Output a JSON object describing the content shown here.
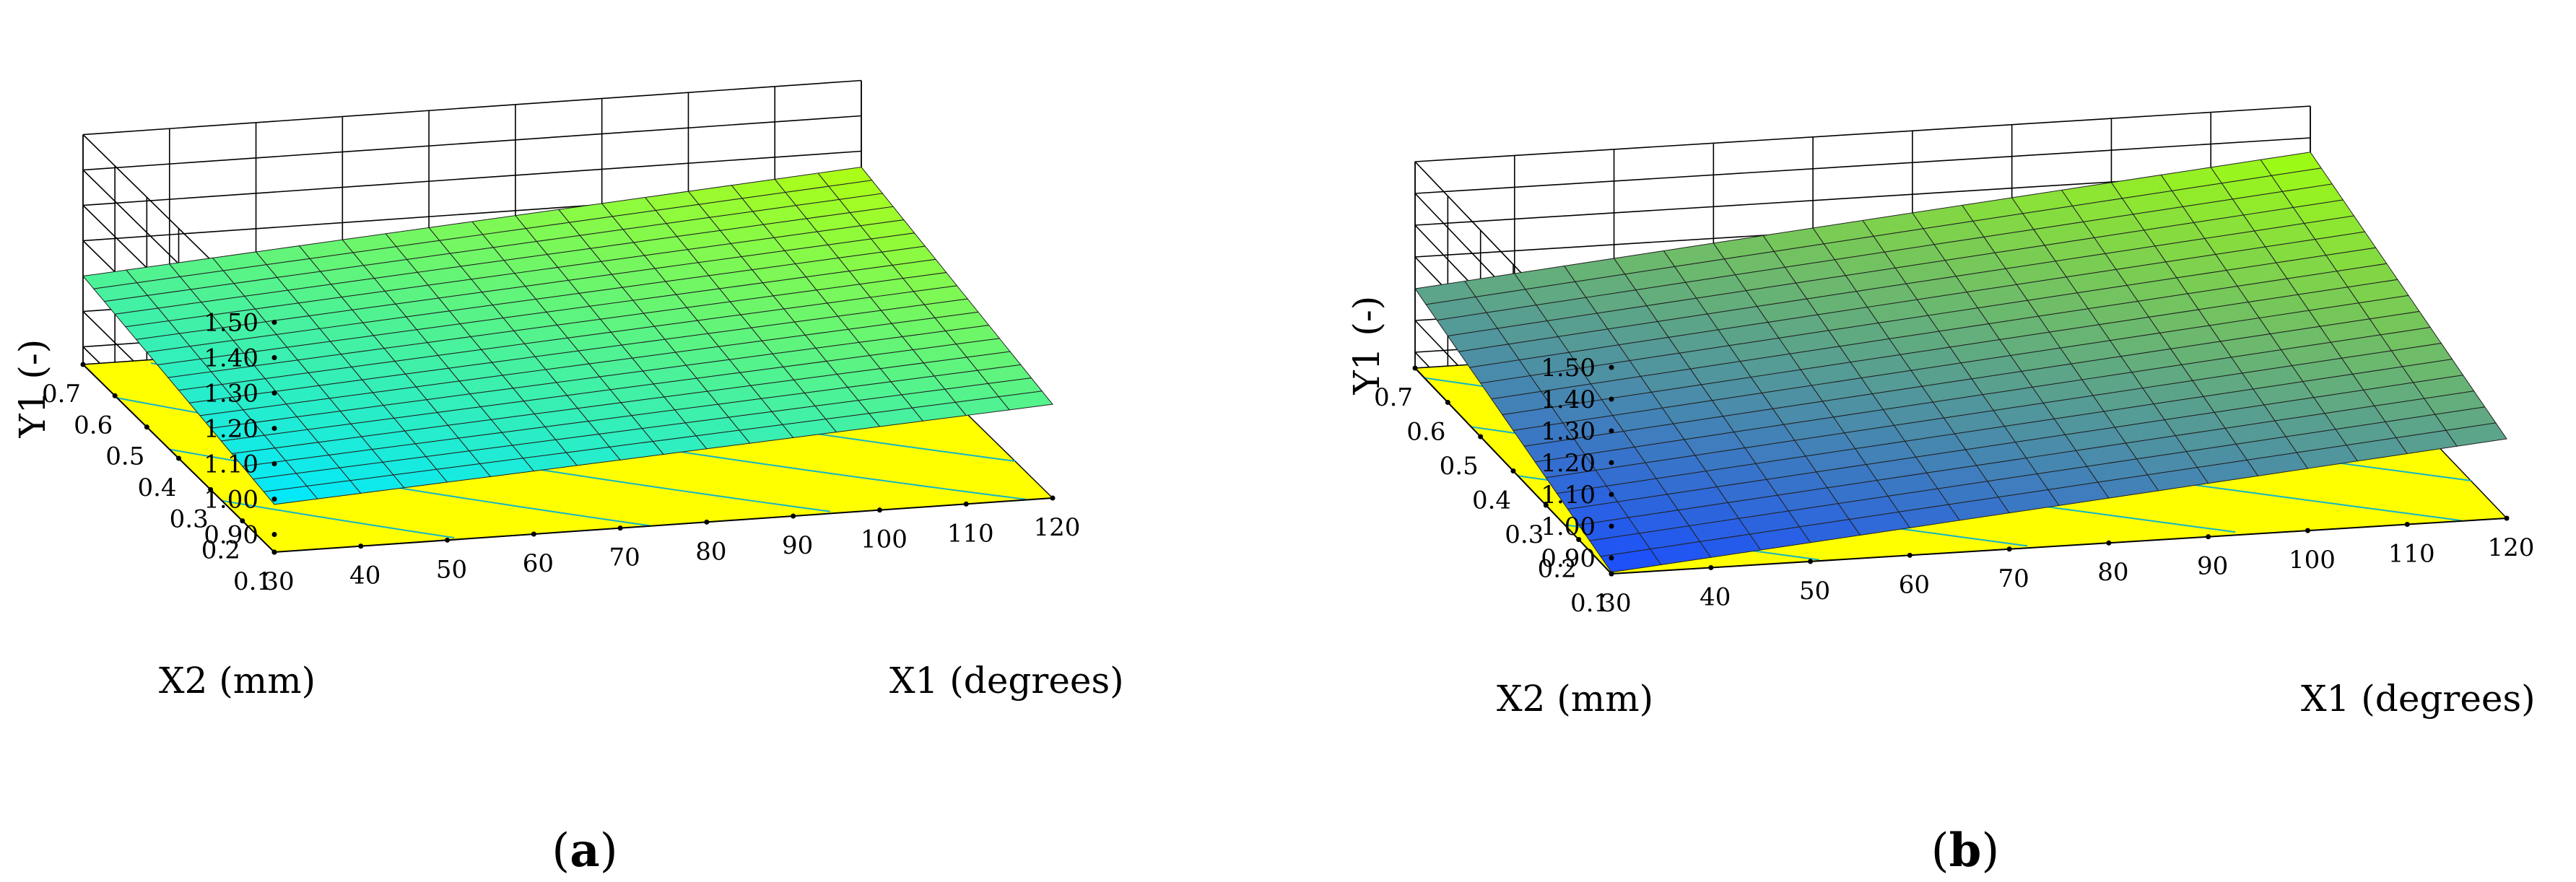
{
  "chart_data": [
    {
      "type": "surface",
      "panel_label": "a",
      "xlabel": "X1 (degrees)",
      "ylabel": "X2 (mm)",
      "zlabel": "Y1 (-)",
      "x_ticks": [
        "30",
        "40",
        "50",
        "60",
        "70",
        "80",
        "90",
        "100",
        "110",
        "120"
      ],
      "y_ticks": [
        "0.1",
        "0.2",
        "0.3",
        "0.4",
        "0.5",
        "0.6",
        "0.7"
      ],
      "z_ticks": [
        "0.90",
        "1.00",
        "1.10",
        "1.20",
        "1.30",
        "1.40",
        "1.50"
      ],
      "xlim": [
        30,
        120
      ],
      "ylim": [
        0.1,
        0.7
      ],
      "zlim": [
        0.85,
        1.5
      ],
      "corners": [
        {
          "x": 30,
          "y": 0.1,
          "z": 0.985
        },
        {
          "x": 120,
          "y": 0.1,
          "z": 1.115
        },
        {
          "x": 120,
          "y": 0.7,
          "z": 1.255
        },
        {
          "x": 30,
          "y": 0.7,
          "z": 1.1
        }
      ],
      "colors": {
        "low": "#00e8ff",
        "high": "#b0ff10",
        "floor": "#ffff00"
      }
    },
    {
      "type": "surface",
      "panel_label": "b",
      "xlabel": "X1 (degrees)",
      "ylabel": "X2 (mm)",
      "zlabel": "Y1 (-)",
      "x_ticks": [
        "30",
        "40",
        "50",
        "60",
        "70",
        "80",
        "90",
        "100",
        "110",
        "120"
      ],
      "y_ticks": [
        "0.1",
        "0.2",
        "0.3",
        "0.4",
        "0.5",
        "0.6",
        "0.7"
      ],
      "z_ticks": [
        "0.90",
        "1.00",
        "1.10",
        "1.20",
        "1.30",
        "1.40",
        "1.50"
      ],
      "xlim": [
        30,
        120
      ],
      "ylim": [
        0.1,
        0.7
      ],
      "zlim": [
        0.85,
        1.5
      ],
      "corners": [
        {
          "x": 30,
          "y": 0.1,
          "z": 0.855
        },
        {
          "x": 120,
          "y": 0.1,
          "z": 1.1
        },
        {
          "x": 120,
          "y": 0.7,
          "z": 1.355
        },
        {
          "x": 30,
          "y": 0.7,
          "z": 1.1
        }
      ],
      "colors": {
        "low": "#1a4cff",
        "high": "#a0ff10",
        "floor": "#ffff00"
      }
    }
  ]
}
